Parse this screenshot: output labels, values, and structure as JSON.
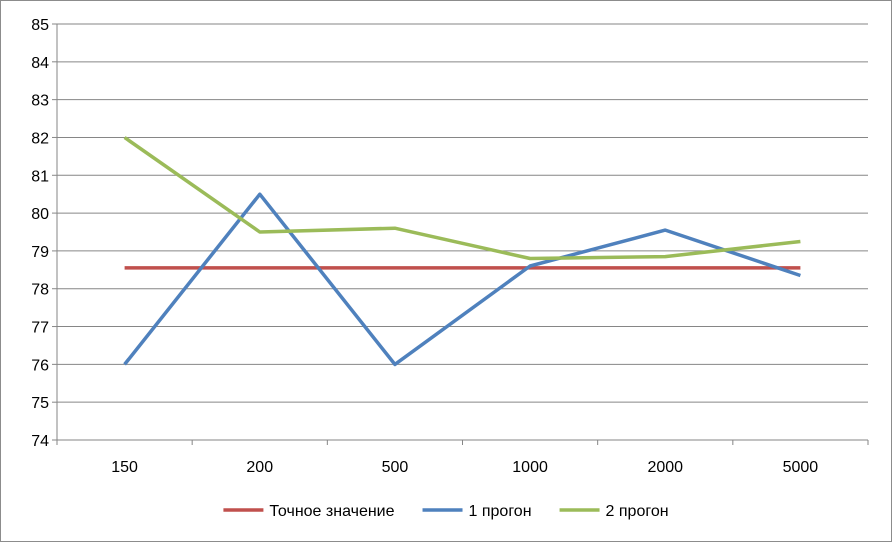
{
  "chart_data": {
    "type": "line",
    "categories": [
      "150",
      "200",
      "500",
      "1000",
      "2000",
      "5000"
    ],
    "ylim": [
      74,
      85
    ],
    "yticks": [
      74,
      75,
      76,
      77,
      78,
      79,
      80,
      81,
      82,
      83,
      84,
      85
    ],
    "grid": true,
    "legend_position": "bottom",
    "series": [
      {
        "name": "Точное значение",
        "color": "#c0504d",
        "values": [
          78.55,
          78.55,
          78.55,
          78.55,
          78.55,
          78.55
        ]
      },
      {
        "name": "1 прогон",
        "color": "#4f81bd",
        "values": [
          76.0,
          80.5,
          76.0,
          78.6,
          79.55,
          78.35
        ]
      },
      {
        "name": "2 прогон",
        "color": "#9bbb59",
        "values": [
          82.0,
          79.5,
          79.6,
          78.8,
          78.85,
          79.25
        ]
      }
    ]
  }
}
